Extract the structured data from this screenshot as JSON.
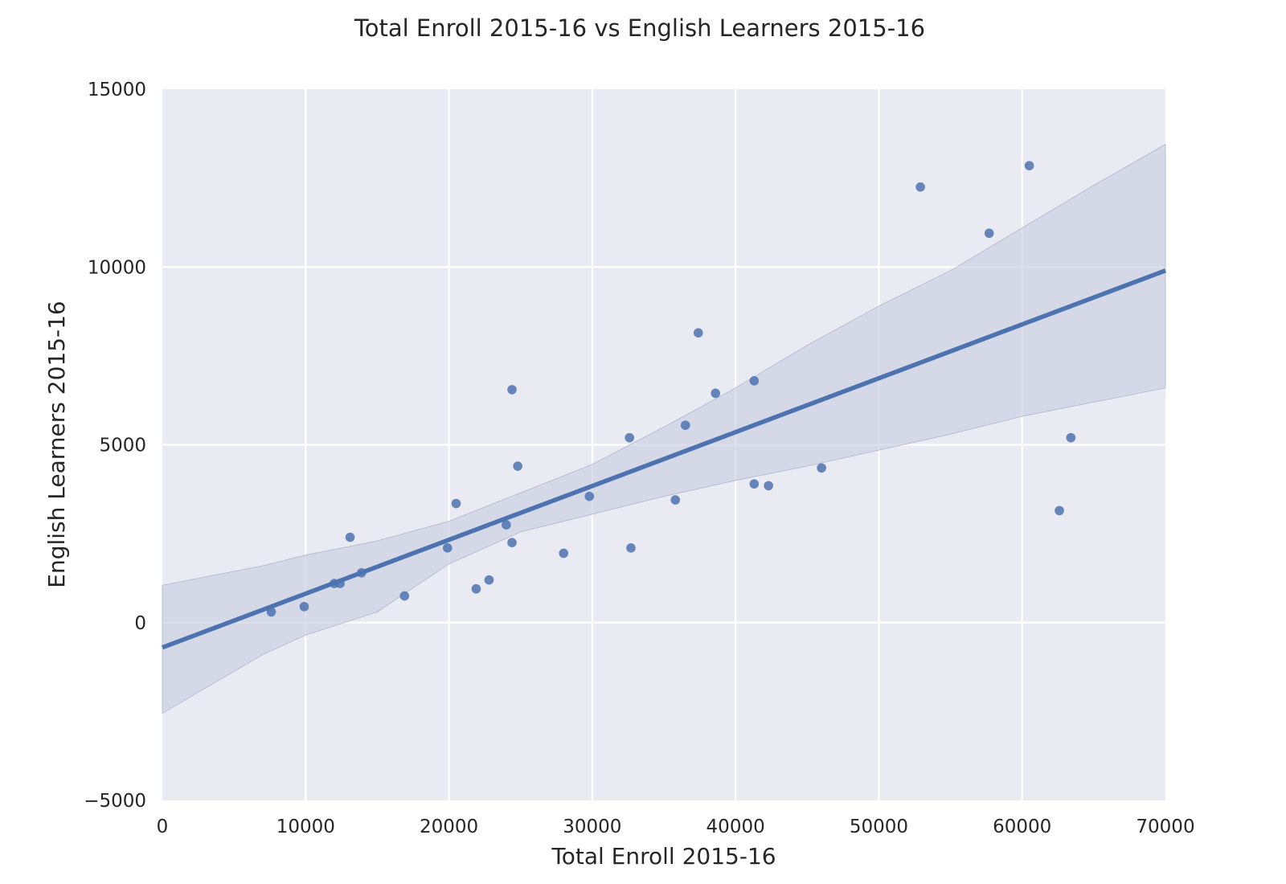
{
  "chart_data": {
    "type": "scatter",
    "title": "Total Enroll 2015-16 vs English Learners 2015-16",
    "xlabel": "Total Enroll 2015-16",
    "ylabel": "English Learners 2015-16",
    "xlim": [
      0,
      70000
    ],
    "ylim": [
      -5000,
      15000
    ],
    "x_ticks": [
      0,
      10000,
      20000,
      30000,
      40000,
      50000,
      60000,
      70000
    ],
    "y_ticks": [
      -5000,
      0,
      5000,
      10000,
      15000
    ],
    "x_tick_labels": [
      "0",
      "10000",
      "20000",
      "30000",
      "40000",
      "50000",
      "60000",
      "70000"
    ],
    "y_tick_labels": [
      "−5000",
      "0",
      "5000",
      "10000",
      "15000"
    ],
    "grid": true,
    "colors": {
      "background": "#eaeaf2",
      "grid": "#ffffff",
      "points": "#4c72b0",
      "line": "#4c72b0",
      "band": "#c4cbe0"
    },
    "points": [
      {
        "x": 7600,
        "y": 300
      },
      {
        "x": 9900,
        "y": 450
      },
      {
        "x": 12000,
        "y": 1100
      },
      {
        "x": 12400,
        "y": 1100
      },
      {
        "x": 13100,
        "y": 2400
      },
      {
        "x": 13900,
        "y": 1400
      },
      {
        "x": 16900,
        "y": 750
      },
      {
        "x": 19900,
        "y": 2100
      },
      {
        "x": 20500,
        "y": 3350
      },
      {
        "x": 21900,
        "y": 950
      },
      {
        "x": 22800,
        "y": 1200
      },
      {
        "x": 24000,
        "y": 2750
      },
      {
        "x": 24400,
        "y": 6550
      },
      {
        "x": 24400,
        "y": 2250
      },
      {
        "x": 24800,
        "y": 4400
      },
      {
        "x": 28000,
        "y": 1950
      },
      {
        "x": 29800,
        "y": 3550
      },
      {
        "x": 32600,
        "y": 5200
      },
      {
        "x": 32700,
        "y": 2100
      },
      {
        "x": 35800,
        "y": 3450
      },
      {
        "x": 36500,
        "y": 5550
      },
      {
        "x": 37400,
        "y": 8150
      },
      {
        "x": 38600,
        "y": 6450
      },
      {
        "x": 41300,
        "y": 6800
      },
      {
        "x": 41300,
        "y": 3900
      },
      {
        "x": 42300,
        "y": 3850
      },
      {
        "x": 46000,
        "y": 4350
      },
      {
        "x": 52900,
        "y": 12250
      },
      {
        "x": 57700,
        "y": 10950
      },
      {
        "x": 60500,
        "y": 12850
      },
      {
        "x": 62600,
        "y": 3150
      },
      {
        "x": 63400,
        "y": 5200
      }
    ],
    "regression_line": {
      "x": [
        0,
        70000
      ],
      "y": [
        -700,
        9900
      ]
    },
    "confidence_band": {
      "x": [
        0,
        7000,
        10000,
        15000,
        20000,
        25000,
        30000,
        35000,
        40000,
        45000,
        50000,
        55000,
        60000,
        65000,
        70000
      ],
      "upper": [
        1050,
        1600,
        1900,
        2300,
        2850,
        3650,
        4450,
        5500,
        6600,
        7800,
        8900,
        9900,
        11100,
        12300,
        13450
      ],
      "lower": [
        -2550,
        -900,
        -350,
        300,
        1650,
        2550,
        3050,
        3550,
        4000,
        4400,
        4850,
        5300,
        5800,
        6200,
        6600
      ]
    }
  }
}
